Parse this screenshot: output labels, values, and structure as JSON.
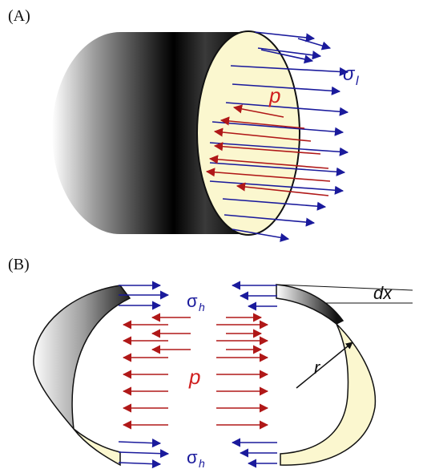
{
  "panels": {
    "a": {
      "label": "(A)",
      "stress_symbol": "σ",
      "stress_subscript": "l",
      "pressure_symbol": "p"
    },
    "b": {
      "label": "(B)",
      "stress_symbol_top": "σ",
      "stress_subscript_top": "h",
      "stress_symbol_bottom": "σ",
      "stress_subscript_bottom": "h",
      "pressure_symbol": "p",
      "width_symbol": "dx",
      "radius_symbol": "r"
    }
  },
  "colors": {
    "stress_arrows": "#1a1a9c",
    "pressure_arrows": "#b01818",
    "pressure_label": "#d02020",
    "stress_label": "#1a1a9c",
    "end_face_fill": "#fbf7cf",
    "outline": "#111111"
  }
}
